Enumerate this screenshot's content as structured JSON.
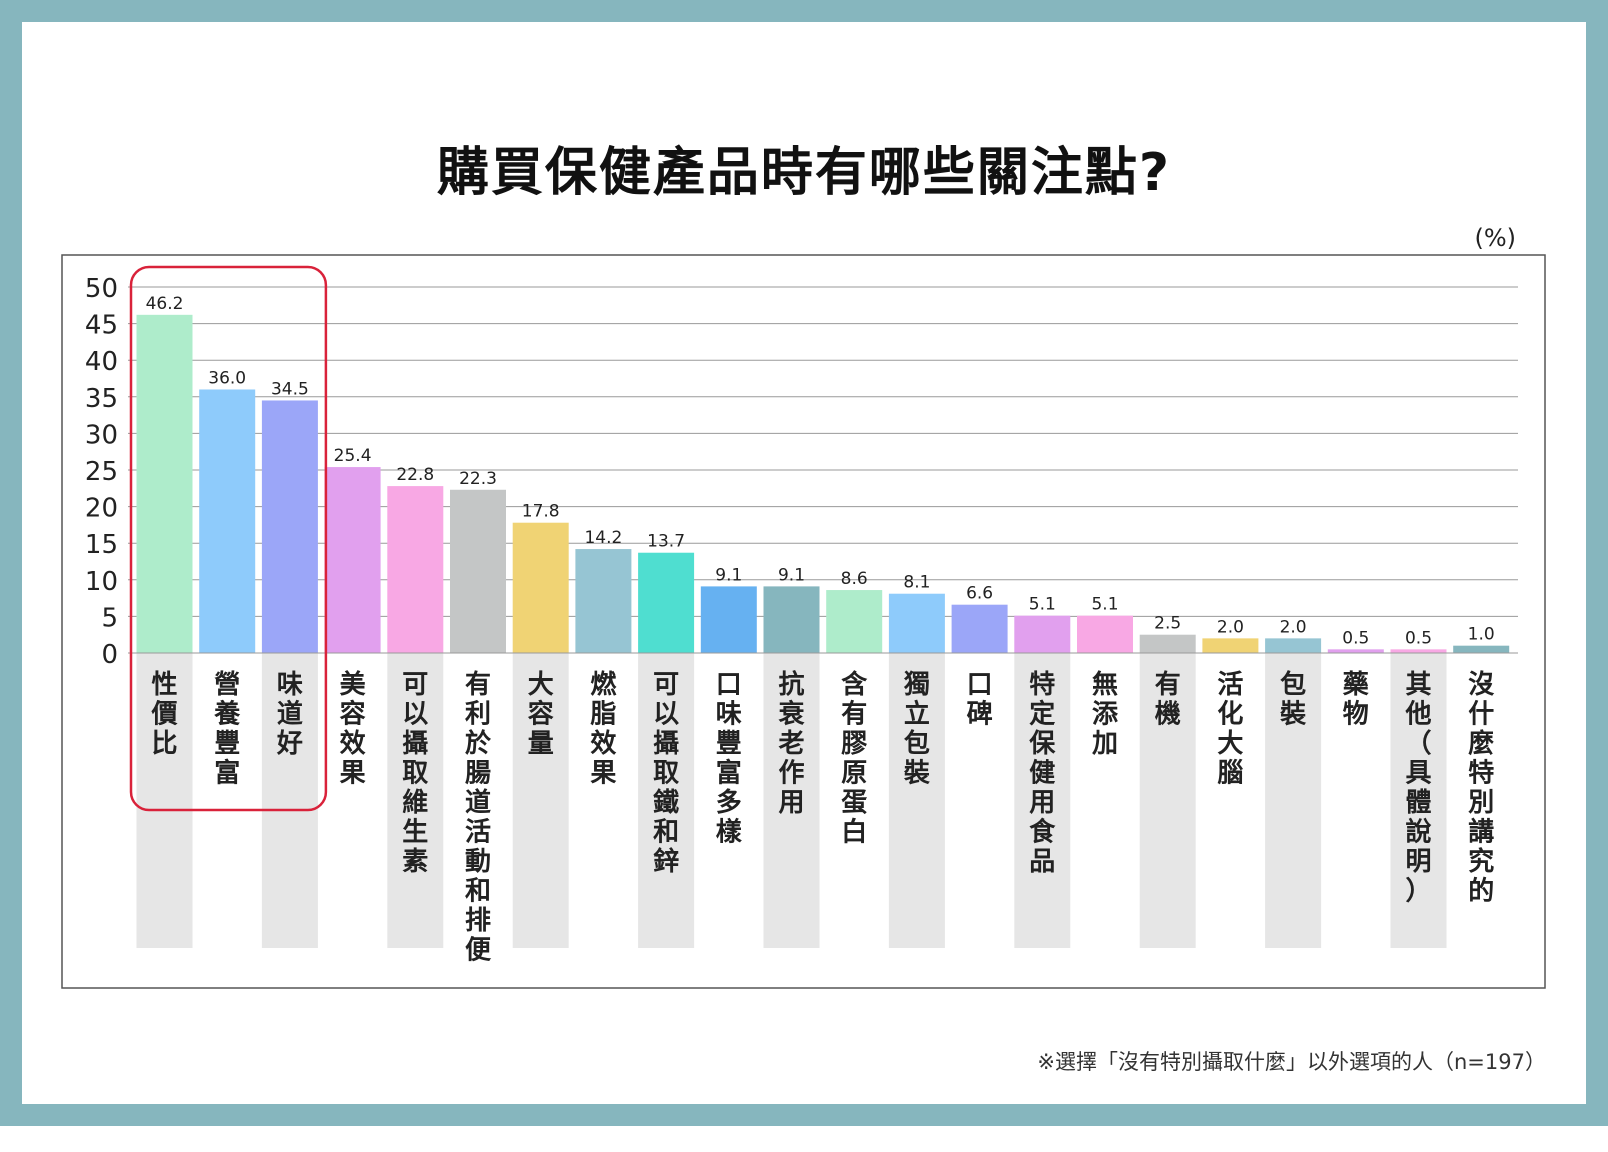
{
  "title": "購買保健產品時有哪些關注點?",
  "unit_label": "(%)",
  "footnote": "※選擇「沒有特別攝取什麼」以外選項的人（n=197）",
  "colors": {
    "frame": "#86b6be",
    "highlight_box": "#d9223a",
    "label_strip": "#e6e6e6"
  },
  "chart_data": {
    "type": "bar",
    "title": "購買保健產品時有哪些關注點?",
    "ylabel": "(%)",
    "ylim": [
      0,
      50
    ],
    "yticks": [
      0,
      5,
      10,
      15,
      20,
      25,
      30,
      35,
      40,
      45,
      50
    ],
    "grid": true,
    "categories": [
      "性價比",
      "營養豐富",
      "味道好",
      "美容效果",
      "可以攝取維生素",
      "有利於腸道活動和排便",
      "大容量",
      "燃脂效果",
      "可以攝取鐵和鋅",
      "口味豐富多樣",
      "抗衰老作用",
      "含有膠原蛋白",
      "獨立包裝",
      "口碑",
      "特定保健用食品",
      "無添加",
      "有機",
      "活化大腦",
      "包裝",
      "藥物",
      "其他（具體說明）",
      "沒什麼特別講究的"
    ],
    "values": [
      46.2,
      36.0,
      34.5,
      25.4,
      22.8,
      22.3,
      17.8,
      14.2,
      13.7,
      9.1,
      9.1,
      8.6,
      8.1,
      6.6,
      5.1,
      5.1,
      2.5,
      2.0,
      2.0,
      0.5,
      0.5,
      1.0
    ],
    "value_labels": [
      "46.2",
      "36.0",
      "34.5",
      "25.4",
      "22.8",
      "22.3",
      "17.8",
      "14.2",
      "13.7",
      "9.1",
      "9.1",
      "8.6",
      "8.1",
      "6.6",
      "5.1",
      "5.1",
      "2.5",
      "2.0",
      "2.0",
      "0.5",
      "0.5",
      "1.0"
    ],
    "bar_colors": [
      "#aeeccb",
      "#8ecbfb",
      "#9ba6f8",
      "#e1a0ee",
      "#f8a8e4",
      "#c4c6c6",
      "#f0d374",
      "#96c5d3",
      "#4fded0",
      "#66b1f1",
      "#86b6be",
      "#aeeccb",
      "#8ecbfb",
      "#9ba6f8",
      "#e1a0ee",
      "#f8a8e4",
      "#c4c6c6",
      "#f0d374",
      "#96c5d3",
      "#e1a0ee",
      "#f8a8e4",
      "#86b6be"
    ],
    "highlighted_categories": [
      "性價比",
      "營養豐富",
      "味道好"
    ]
  }
}
